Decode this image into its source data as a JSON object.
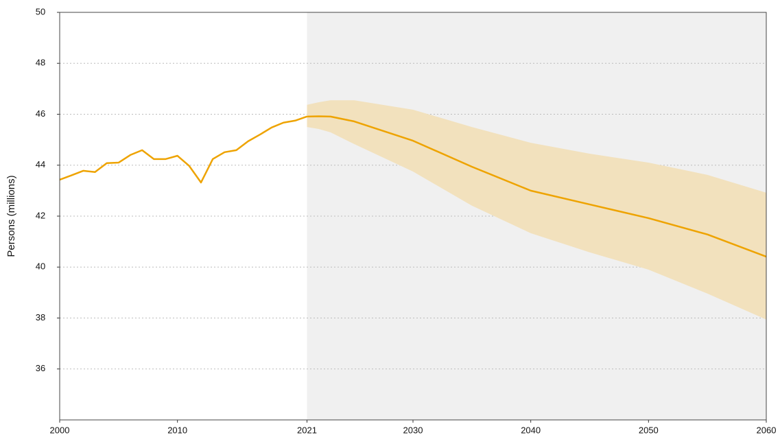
{
  "chart_data": {
    "type": "line",
    "y_label": "Persons (millions)",
    "xlim": [
      2000,
      2060
    ],
    "xticks": [
      2000,
      2010,
      2021,
      2030,
      2040,
      2050,
      2060
    ],
    "ylim": [
      34,
      50
    ],
    "yticks": [
      36,
      38,
      40,
      42,
      44,
      46,
      48,
      50
    ],
    "grid": true,
    "shaded_region": {
      "xlim": [
        2021,
        2060
      ],
      "color": "#f0f0f0"
    },
    "series": [
      {
        "color": "#eea300",
        "x": [
          2000,
          2001,
          2002,
          2003,
          2004,
          2005,
          2006,
          2007,
          2008,
          2009,
          2010,
          2011,
          2012,
          2013,
          2014,
          2015,
          2016,
          2017,
          2018,
          2019,
          2020,
          2021
        ],
        "values": [
          43.43,
          43.6,
          43.78,
          43.73,
          44.08,
          44.1,
          44.4,
          44.59,
          44.24,
          44.24,
          44.37,
          43.97,
          43.32,
          44.24,
          44.51,
          44.59,
          44.94,
          45.2,
          45.48,
          45.67,
          45.75,
          45.91
        ]
      },
      {
        "color": "#eea300",
        "band_color": "#f2e1bd",
        "x": [
          2021,
          2022,
          2023,
          2025,
          2030,
          2035,
          2040,
          2045,
          2050,
          2055,
          2060
        ],
        "values": [
          45.91,
          45.92,
          45.91,
          45.72,
          44.96,
          43.94,
          43.0,
          42.46,
          41.92,
          41.28,
          40.41
        ],
        "upper": [
          46.37,
          46.47,
          46.55,
          46.55,
          46.18,
          45.5,
          44.88,
          44.45,
          44.1,
          43.62,
          42.92
        ],
        "lower": [
          45.5,
          45.42,
          45.29,
          44.83,
          43.75,
          42.41,
          41.33,
          40.58,
          39.9,
          38.96,
          37.94
        ]
      }
    ]
  }
}
